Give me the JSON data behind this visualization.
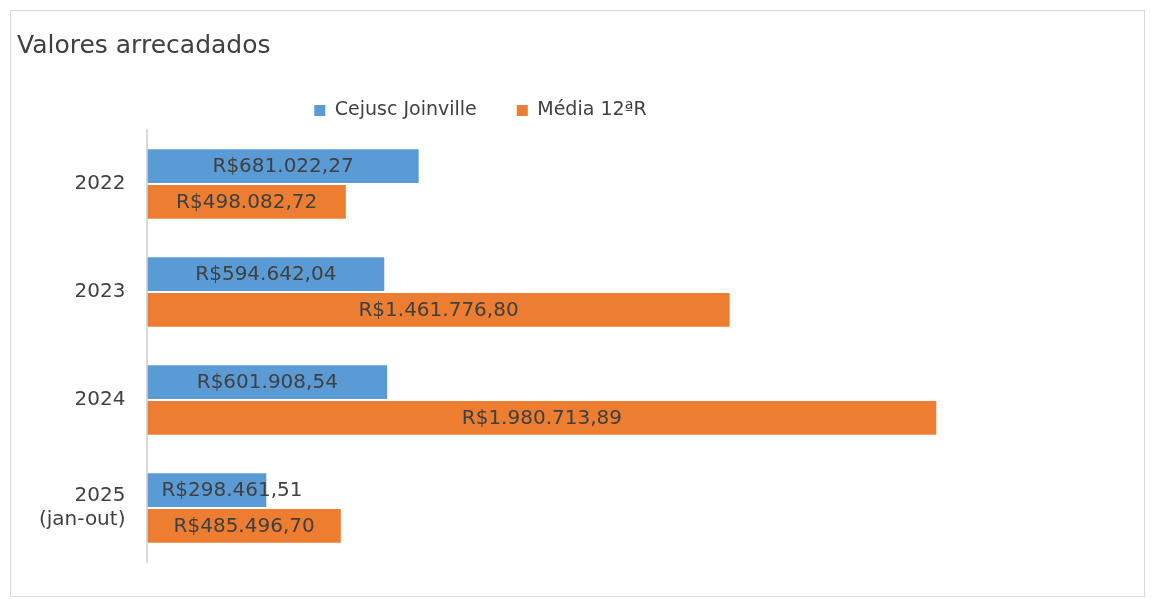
{
  "chart_data": {
    "type": "bar",
    "orientation": "horizontal",
    "title": "Valores arrecadados",
    "categories": [
      "2022",
      "2023",
      "2024",
      "2025 (jan-out)"
    ],
    "series": [
      {
        "name": "Cejusc Joinville",
        "color": "#5b9bd5",
        "values": [
          681022.27,
          594642.04,
          601908.54,
          298461.51
        ],
        "value_labels": [
          "R$681.022,27",
          "R$594.642,04",
          "R$601.908,54",
          "R$298.461,51"
        ]
      },
      {
        "name": "Média 12ªR",
        "color": "#ed7d31",
        "values": [
          498082.72,
          1461776.8,
          1980713.89,
          485496.7
        ],
        "value_labels": [
          "R$498.082,72",
          "R$1.461.776,80",
          "R$1.980.713,89",
          "R$485.496,70"
        ]
      }
    ],
    "tick_labels": "y",
    "legend": "top"
  }
}
